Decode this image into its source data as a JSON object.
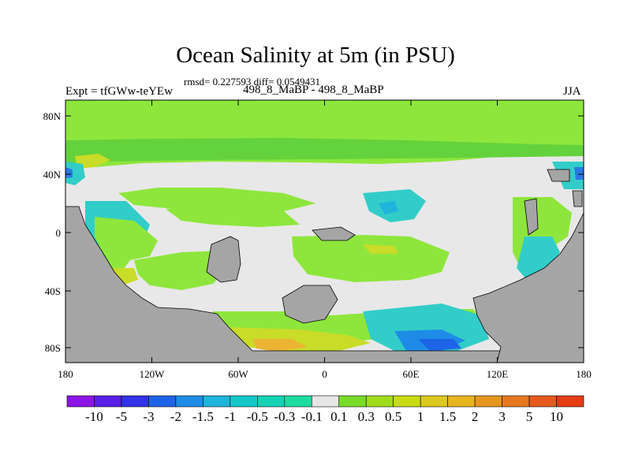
{
  "header": {
    "title": "Ocean Salinity at 5m (in PSU)",
    "stats": "rmsd= 0.227593 diff= 0.0549431",
    "expt": "Expt = tfGWw-teYEw",
    "center_label": "498_8_MaBP - 498_8_MaBP",
    "season": "JJA"
  },
  "map": {
    "lat_ticks": [
      "80N",
      "40N",
      "0",
      "40S",
      "80S"
    ],
    "lon_ticks": [
      "180",
      "120W",
      "60W",
      "0",
      "60E",
      "120E",
      "180"
    ],
    "colors": {
      "land": "#a5a5a5",
      "near_zero": "#e8e8e8",
      "positive_light": "#8ee63c",
      "positive": "#64d23c",
      "yellow": "#c8dc28",
      "orange": "#ecb432",
      "cyan": "#32cdc8",
      "blue": "#2878e6"
    }
  },
  "colorbar": {
    "labels": [
      "-10",
      "-5",
      "-3",
      "-2",
      "-1.5",
      "-1",
      "-0.5",
      "-0.3",
      "-0.1",
      "0.1",
      "0.3",
      "0.5",
      "1",
      "1.5",
      "2",
      "3",
      "5",
      "10"
    ],
    "colors": [
      "#8c14e6",
      "#5a1ee6",
      "#3232e6",
      "#1e64e6",
      "#1e8ce6",
      "#1eb4dc",
      "#14c8c8",
      "#14d2b4",
      "#1edca0",
      "#e6e6e6",
      "#78dc28",
      "#a0dc1e",
      "#c8dc14",
      "#dcc81e",
      "#e6b41e",
      "#e6961e",
      "#e6781e",
      "#e65a1e",
      "#e63c14"
    ]
  }
}
